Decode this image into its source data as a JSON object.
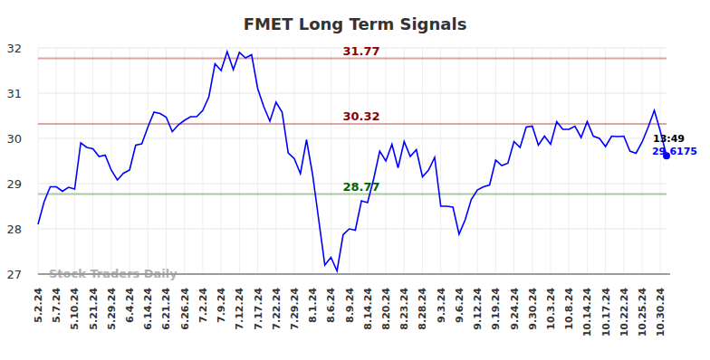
{
  "chart_data": {
    "type": "line",
    "title": "FMET Long Term Signals",
    "watermark": "Stock Traders Daily",
    "last_label": "13:49",
    "color": "#0000ff",
    "grid": true,
    "ylim": [
      27,
      32
    ],
    "yticks": [
      27,
      28,
      29,
      30,
      31,
      32
    ],
    "reference_lines": [
      {
        "value": 31.77,
        "color": "#8b0000"
      },
      {
        "value": 30.32,
        "color": "#8b0000"
      },
      {
        "value": 28.77,
        "color": "#006400"
      }
    ],
    "categories": [
      "5.2.24",
      null,
      null,
      "5.7.24",
      null,
      null,
      "5.10.24",
      null,
      null,
      "5.21.24",
      null,
      null,
      "5.29.24",
      null,
      null,
      "6.4.24",
      null,
      null,
      "6.14.24",
      null,
      null,
      "6.21.24",
      null,
      null,
      "6.26.24",
      null,
      null,
      "7.2.24",
      null,
      null,
      "7.9.24",
      null,
      null,
      "7.12.24",
      null,
      null,
      "7.17.24",
      null,
      null,
      "7.22.24",
      null,
      null,
      "7.29.24",
      null,
      null,
      "8.1.24",
      null,
      null,
      "8.6.24",
      null,
      null,
      "8.9.24",
      null,
      null,
      "8.14.24",
      null,
      null,
      "8.20.24",
      null,
      null,
      "8.23.24",
      null,
      null,
      "8.28.24",
      null,
      null,
      "9.3.24",
      null,
      null,
      "9.6.24",
      null,
      null,
      "9.12.24",
      null,
      null,
      "9.19.24",
      null,
      null,
      "9.24.24",
      null,
      null,
      "9.30.24",
      null,
      null,
      "10.3.24",
      null,
      null,
      "10.8.24",
      null,
      null,
      "10.14.24",
      null,
      null,
      "10.17.24",
      null,
      null,
      "10.22.24",
      null,
      null,
      "10.25.24",
      null,
      null,
      "10.30.24",
      null
    ],
    "values": [
      28.1,
      28.6,
      28.93,
      28.93,
      28.83,
      28.92,
      28.88,
      29.9,
      29.8,
      29.77,
      29.6,
      29.63,
      29.3,
      29.08,
      29.23,
      29.3,
      29.85,
      29.88,
      30.25,
      30.58,
      30.55,
      30.47,
      30.15,
      30.3,
      30.4,
      30.48,
      30.48,
      30.62,
      30.92,
      31.65,
      31.5,
      31.92,
      31.52,
      31.9,
      31.78,
      31.85,
      31.1,
      30.7,
      30.38,
      30.8,
      30.58,
      29.68,
      29.55,
      29.22,
      29.97,
      29.2,
      28.2,
      27.2,
      27.37,
      27.07,
      27.87,
      28.0,
      27.97,
      28.62,
      28.58,
      29.1,
      29.72,
      29.5,
      29.87,
      29.35,
      29.93,
      29.6,
      29.75,
      29.15,
      29.3,
      29.58,
      28.5,
      28.5,
      28.48,
      27.88,
      28.2,
      28.65,
      28.86,
      28.93,
      28.97,
      29.52,
      29.4,
      29.45,
      29.93,
      29.8,
      30.25,
      30.27,
      29.85,
      30.05,
      29.87,
      30.37,
      30.2,
      30.2,
      30.27,
      30.02,
      30.37,
      30.05,
      30.0,
      29.82,
      30.05,
      30.04,
      30.05,
      29.72,
      29.67,
      29.92,
      30.25,
      30.62,
      30.15,
      29.6175
    ]
  }
}
